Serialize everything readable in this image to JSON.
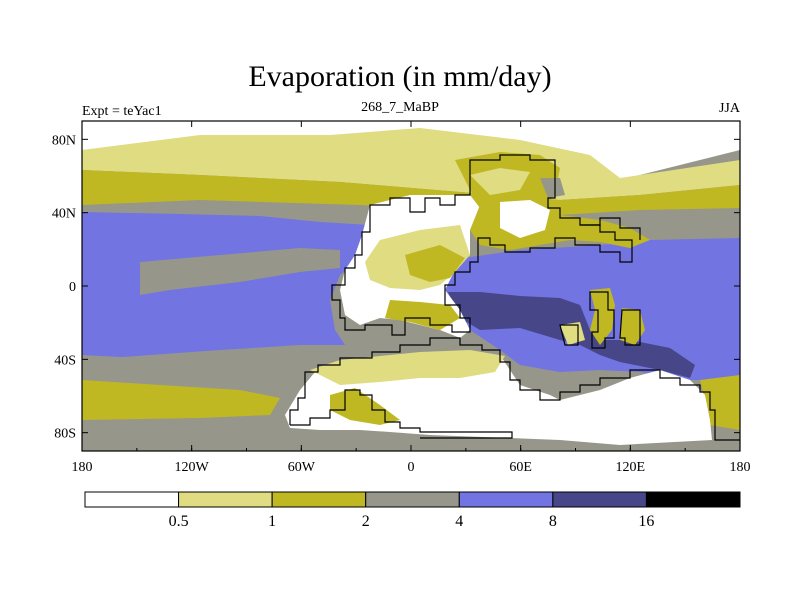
{
  "header": {
    "title": "Evaporation (in mm/day)",
    "left_label": "Expt = teYac1",
    "center_label": "268_7_MaBP",
    "right_label": "JJA"
  },
  "map": {
    "x_ticks": [
      "180",
      "120W",
      "60W",
      "0",
      "60E",
      "120E",
      "180"
    ],
    "y_ticks": [
      "80N",
      "40N",
      "0",
      "40S",
      "80S"
    ]
  },
  "colorbar": {
    "levels": [
      "0.5",
      "1",
      "2",
      "4",
      "8",
      "16"
    ],
    "colors": [
      "#ffffff",
      "#dfdc82",
      "#bfb823",
      "#97968a",
      "#7174e1",
      "#464689",
      "#000000"
    ]
  }
}
